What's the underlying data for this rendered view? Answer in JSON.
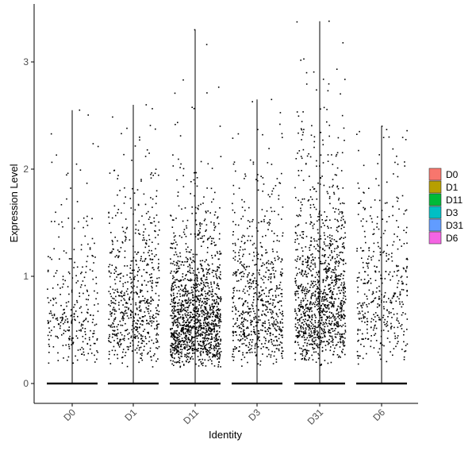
{
  "chart_data": {
    "type": "violin-jitter",
    "xlabel": "Identity",
    "ylabel": "Expression Level",
    "categories": [
      "D0",
      "D1",
      "D11",
      "D3",
      "D31",
      "D6"
    ],
    "ylim": [
      -0.2,
      3.5
    ],
    "yticks": [
      0,
      1,
      2,
      3
    ],
    "max_values": [
      2.55,
      2.6,
      3.3,
      2.65,
      3.38,
      2.4
    ],
    "nonzero_point_counts": [
      300,
      650,
      1400,
      700,
      1200,
      420
    ],
    "point_value_mode": [
      0.5,
      0.55,
      0.45,
      0.55,
      0.6,
      0.6
    ],
    "legend": {
      "position": "right",
      "items": [
        {
          "label": "D0",
          "color": "#F8766D"
        },
        {
          "label": "D1",
          "color": "#B79F00"
        },
        {
          "label": "D11",
          "color": "#00BA38"
        },
        {
          "label": "D3",
          "color": "#00BFC4"
        },
        {
          "label": "D31",
          "color": "#619CFF"
        },
        {
          "label": "D6",
          "color": "#F564E3"
        }
      ]
    },
    "grid": false
  }
}
